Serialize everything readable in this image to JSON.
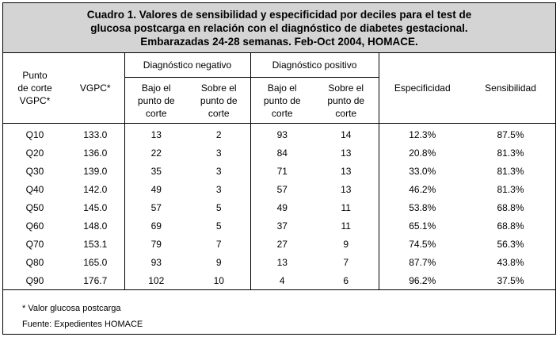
{
  "title": {
    "line1": "Cuadro 1. Valores de sensibilidad y especificidad por deciles para el test de",
    "line2": "glucosa postcarga en relación con el diagnóstico de diabetes gestacional.",
    "line3": "Embarazadas 24-28 semanas. Feb-Oct 2004, HOMACE."
  },
  "headers": {
    "punto_line1": "Punto",
    "punto_line2": "de corte",
    "punto_line3": "VGPC*",
    "vgpc": "VGPC*",
    "diag_neg": "Diagnóstico negativo",
    "diag_pos": "Diagnóstico positivo",
    "bajo_line1": "Bajo el",
    "bajo_line2": "punto de",
    "bajo_line3": "corte",
    "sobre_line1": "Sobre el",
    "sobre_line2": "punto de",
    "sobre_line3": "corte",
    "especificidad": "Especificidad",
    "sensibilidad": "Sensibilidad"
  },
  "rows": [
    {
      "q": "Q10",
      "vgpc": "133.0",
      "neg_bajo": "13",
      "neg_sobre": "2",
      "pos_bajo": "93",
      "pos_sobre": "14",
      "esp": "12.3%",
      "sens": "87.5%"
    },
    {
      "q": "Q20",
      "vgpc": "136.0",
      "neg_bajo": "22",
      "neg_sobre": "3",
      "pos_bajo": "84",
      "pos_sobre": "13",
      "esp": "20.8%",
      "sens": "81.3%"
    },
    {
      "q": "Q30",
      "vgpc": "139.0",
      "neg_bajo": "35",
      "neg_sobre": "3",
      "pos_bajo": "71",
      "pos_sobre": "13",
      "esp": "33.0%",
      "sens": "81.3%"
    },
    {
      "q": "Q40",
      "vgpc": "142.0",
      "neg_bajo": "49",
      "neg_sobre": "3",
      "pos_bajo": "57",
      "pos_sobre": "13",
      "esp": "46.2%",
      "sens": "81.3%"
    },
    {
      "q": "Q50",
      "vgpc": "145.0",
      "neg_bajo": "57",
      "neg_sobre": "5",
      "pos_bajo": "49",
      "pos_sobre": "11",
      "esp": "53.8%",
      "sens": "68.8%"
    },
    {
      "q": "Q60",
      "vgpc": "148.0",
      "neg_bajo": "69",
      "neg_sobre": "5",
      "pos_bajo": "37",
      "pos_sobre": "11",
      "esp": "65.1%",
      "sens": "68.8%"
    },
    {
      "q": "Q70",
      "vgpc": "153.1",
      "neg_bajo": "79",
      "neg_sobre": "7",
      "pos_bajo": "27",
      "pos_sobre": "9",
      "esp": "74.5%",
      "sens": "56.3%"
    },
    {
      "q": "Q80",
      "vgpc": "165.0",
      "neg_bajo": "93",
      "neg_sobre": "9",
      "pos_bajo": "13",
      "pos_sobre": "7",
      "esp": "87.7%",
      "sens": "43.8%"
    },
    {
      "q": "Q90",
      "vgpc": "176.7",
      "neg_bajo": "102",
      "neg_sobre": "10",
      "pos_bajo": "4",
      "pos_sobre": "6",
      "esp": "96.2%",
      "sens": "37.5%"
    }
  ],
  "notes": {
    "note1": "* Valor glucosa postcarga",
    "note2": "Fuente: Expedientes HOMACE"
  }
}
